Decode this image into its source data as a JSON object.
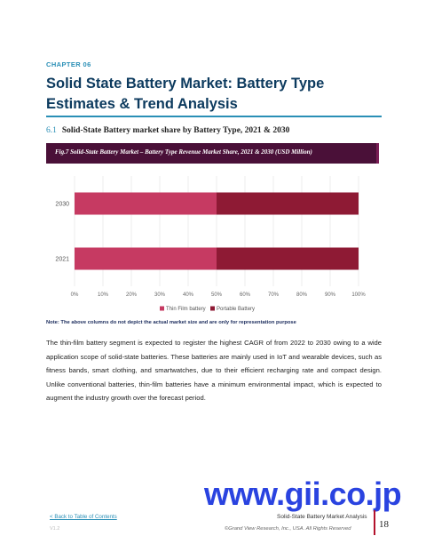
{
  "header": {
    "chapter": "CHAPTER 06",
    "title": "Solid State Battery Market: Battery Type Estimates & Trend Analysis"
  },
  "section": {
    "number": "6.1",
    "title": "Solid-State Battery market share by Battery Type, 2021 & 2030"
  },
  "figure": {
    "caption": "Fig.7  Solid-State Battery Market – Battery Type Revenue Market Share, 2021 & 2030 (USD Million)"
  },
  "chart_data": {
    "type": "bar",
    "orientation": "horizontal",
    "stacked": true,
    "categories": [
      "2030",
      "2021"
    ],
    "series": [
      {
        "name": "Thin Film battery",
        "values": [
          50,
          50
        ],
        "color": "#c63a62"
      },
      {
        "name": "Portable Battery",
        "values": [
          50,
          50
        ],
        "color": "#8e1a34"
      }
    ],
    "x_ticks": [
      "0%",
      "10%",
      "20%",
      "30%",
      "40%",
      "50%",
      "60%",
      "70%",
      "80%",
      "90%",
      "100%"
    ],
    "xlim": [
      0,
      100
    ],
    "grid": true,
    "legend": "bottom"
  },
  "note": "Note: The above columns do not depict the actual market size and are only for representation purpose",
  "body_text": "The thin-film battery segment is expected to register the highest CAGR of from 2022 to 2030 owing to a wide application scope of solid-state batteries. These batteries are mainly used in IoT and wearable devices, such as fitness bands, smart clothing, and smartwatches, due to their efficient recharging rate and compact design. Unlike conventional batteries, thin-film batteries have a minimum environmental impact, which is expected to augment the industry growth over the forecast period.",
  "watermark": "www.gii.co.jp",
  "footer": {
    "toc_link": "< Back to Table of Contents",
    "version": "V1.2",
    "report_title": "Solid-State Battery Market Analysis",
    "copyright": "©Grand View Research, Inc., USA. All Rights Reserved",
    "page_number": "18"
  }
}
